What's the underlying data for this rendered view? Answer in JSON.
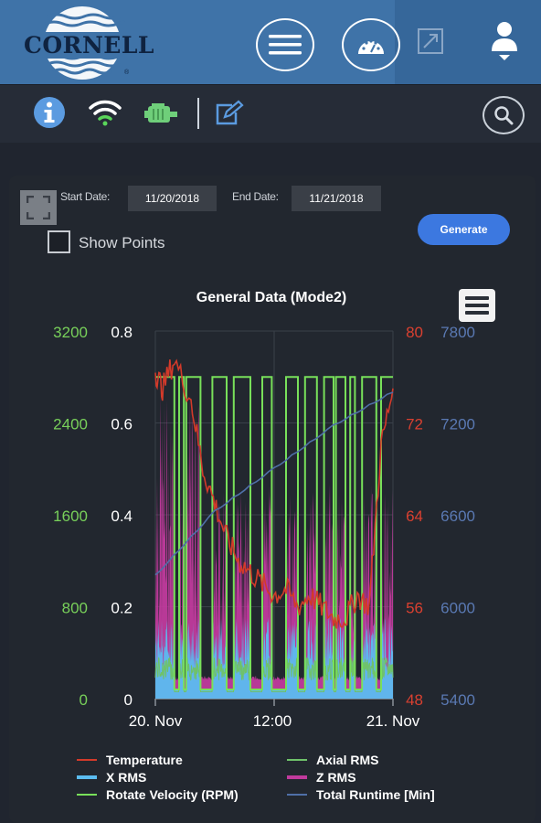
{
  "header": {
    "logo_text": "CORNELL",
    "logo_mark": "®",
    "icons": [
      "menu-icon",
      "gauge-icon",
      "expand-icon",
      "user-icon"
    ]
  },
  "toolbar": {
    "icons": [
      "info-icon",
      "wifi-icon",
      "motor-icon",
      "edit-icon",
      "search-icon"
    ]
  },
  "controls": {
    "start_label": "Start Date:",
    "start_value": "11/20/2018",
    "end_label": "End Date:",
    "end_value": "11/21/2018",
    "show_points_label": "Show Points",
    "show_points_checked": false,
    "generate_label": "Generate"
  },
  "colors": {
    "temperature": "#d33a2a",
    "x_rms": "#5bbcf0",
    "axial_rms": "#6fc26a",
    "z_rms": "#c13a9d",
    "rotate_velocity": "#78e05a",
    "total_runtime": "#4f6fa8"
  },
  "chart_data": {
    "type": "line",
    "title": "General Data (Mode2)",
    "x_ticks": [
      "20. Nov",
      "12:00",
      "21. Nov"
    ],
    "axes": {
      "rpm": {
        "ticks": [
          "3200",
          "2400",
          "1600",
          "800",
          "0"
        ],
        "range": [
          0,
          3200
        ]
      },
      "rms": {
        "ticks": [
          "0.8",
          "0.6",
          "0.4",
          "0.2",
          "0"
        ],
        "range": [
          0,
          0.8
        ]
      },
      "temperature": {
        "ticks": [
          "80",
          "72",
          "64",
          "56",
          "48"
        ],
        "range": [
          48,
          80
        ]
      },
      "runtime": {
        "ticks": [
          "7800",
          "7200",
          "6600",
          "6000",
          "5400"
        ],
        "range": [
          5400,
          7800
        ]
      }
    },
    "legend": [
      {
        "key": "temperature",
        "label": "Temperature"
      },
      {
        "key": "axial_rms",
        "label": "Axial RMS"
      },
      {
        "key": "x_rms",
        "label": "X RMS"
      },
      {
        "key": "z_rms",
        "label": "Z RMS"
      },
      {
        "key": "rotate_velocity",
        "label": "Rotate Velocity (RPM)"
      },
      {
        "key": "total_runtime",
        "label": "Total Runtime [Min]"
      }
    ],
    "series": {
      "rotate_velocity_high": 2800,
      "rotate_velocity_low": 80,
      "run_periods_fraction": [
        [
          0.0,
          0.08
        ],
        [
          0.1,
          0.12
        ],
        [
          0.13,
          0.19
        ],
        [
          0.24,
          0.3
        ],
        [
          0.33,
          0.4
        ],
        [
          0.45,
          0.49
        ],
        [
          0.55,
          0.6
        ],
        [
          0.63,
          0.68
        ],
        [
          0.71,
          0.75
        ],
        [
          0.76,
          0.8
        ],
        [
          0.82,
          0.84
        ],
        [
          0.87,
          0.93
        ],
        [
          0.95,
          1.0
        ]
      ],
      "runtime_points": [
        [
          0,
          6200
        ],
        [
          0.25,
          6620
        ],
        [
          0.5,
          6900
        ],
        [
          0.75,
          7180
        ],
        [
          1.0,
          7400
        ]
      ],
      "temperature_points": [
        [
          0,
          76.5
        ],
        [
          0.03,
          75
        ],
        [
          0.08,
          77.5
        ],
        [
          0.15,
          74
        ],
        [
          0.2,
          68
        ],
        [
          0.25,
          65
        ],
        [
          0.3,
          62
        ],
        [
          0.35,
          60
        ],
        [
          0.4,
          59
        ],
        [
          0.45,
          58
        ],
        [
          0.5,
          57
        ],
        [
          0.55,
          57.5
        ],
        [
          0.6,
          56
        ],
        [
          0.65,
          57
        ],
        [
          0.7,
          56
        ],
        [
          0.75,
          55
        ],
        [
          0.8,
          55
        ],
        [
          0.85,
          57
        ],
        [
          0.9,
          56
        ],
        [
          0.95,
          70
        ],
        [
          1.0,
          75
        ]
      ]
    }
  }
}
